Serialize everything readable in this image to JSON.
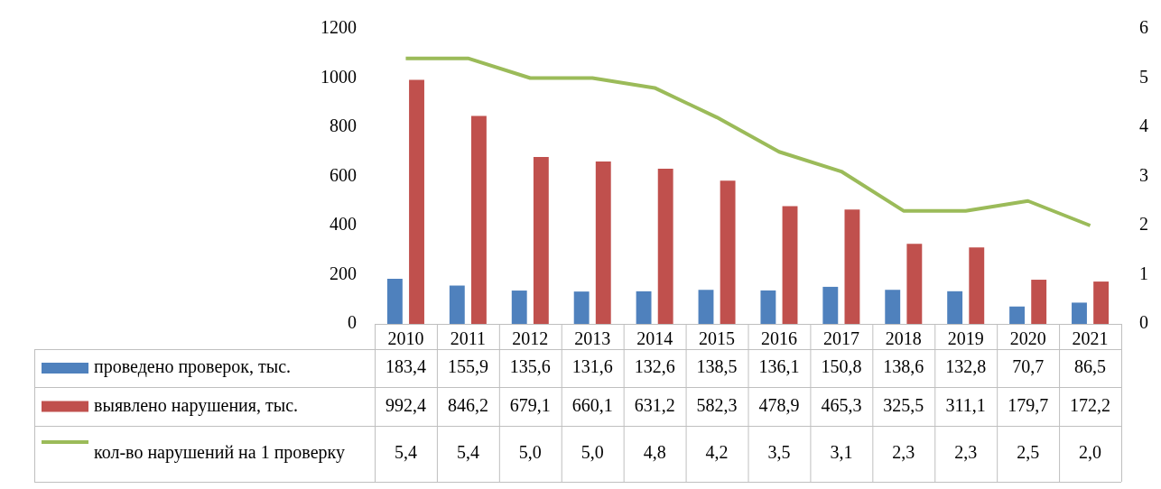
{
  "chart_data": {
    "type": "bar",
    "categories": [
      "2010",
      "2011",
      "2012",
      "2013",
      "2014",
      "2015",
      "2016",
      "2017",
      "2018",
      "2019",
      "2020",
      "2021"
    ],
    "series": [
      {
        "name": "проведено проверок, тыс.",
        "color": "#4f81bd",
        "values": [
          183.4,
          155.9,
          135.6,
          131.6,
          132.6,
          138.5,
          136.1,
          150.8,
          138.6,
          132.8,
          70.7,
          86.5
        ],
        "value_labels": [
          "183,4",
          "155,9",
          "135,6",
          "131,6",
          "132,6",
          "138,5",
          "136,1",
          "150,8",
          "138,6",
          "132,8",
          "70,7",
          "86,5"
        ]
      },
      {
        "name": "выявлено нарушения, тыс.",
        "color": "#c0504d",
        "values": [
          992.4,
          846.2,
          679.1,
          660.1,
          631.2,
          582.3,
          478.9,
          465.3,
          325.5,
          311.1,
          179.7,
          172.2
        ],
        "value_labels": [
          "992,4",
          "846,2",
          "679,1",
          "660,1",
          "631,2",
          "582,3",
          "478,9",
          "465,3",
          "325,5",
          "311,1",
          "179,7",
          "172,2"
        ]
      },
      {
        "name": "кол-во нарушений на 1 проверку",
        "type": "line",
        "axis": "y2",
        "color": "#9bbb59",
        "values": [
          5.4,
          5.4,
          5.0,
          5.0,
          4.8,
          4.2,
          3.5,
          3.1,
          2.3,
          2.3,
          2.5,
          2.0
        ],
        "value_labels": [
          "5,4",
          "5,4",
          "5,0",
          "5,0",
          "4,8",
          "4,2",
          "3,5",
          "3,1",
          "2,3",
          "2,3",
          "2,5",
          "2,0"
        ]
      }
    ],
    "ylim": [
      0,
      1200
    ],
    "yticks": [
      0,
      200,
      400,
      600,
      800,
      1000,
      1200
    ],
    "y2lim": [
      0,
      6
    ],
    "y2ticks": [
      0,
      1,
      2,
      3,
      4,
      5,
      6
    ],
    "grid": false,
    "legend": "bottom",
    "marker": "none",
    "line_style": "solid"
  }
}
